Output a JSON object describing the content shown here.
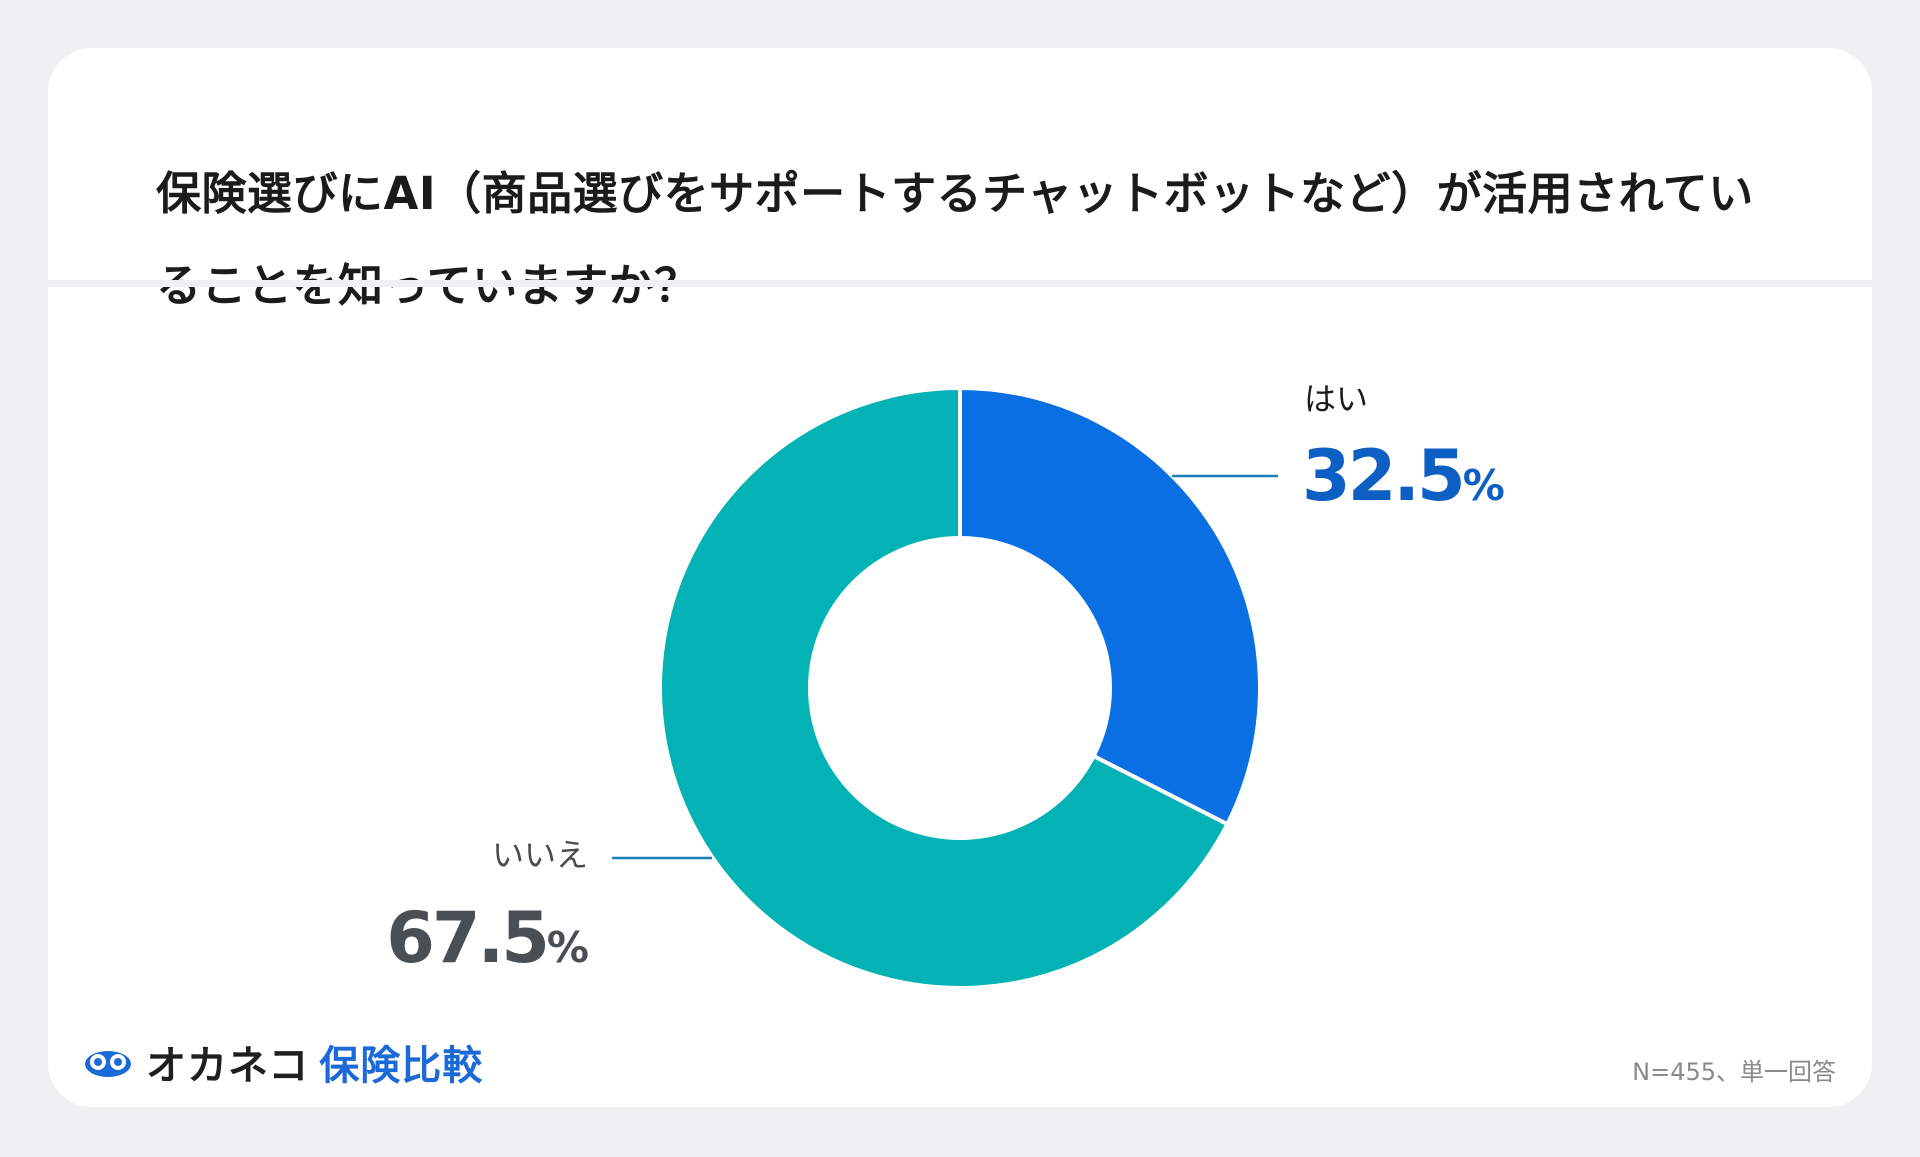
{
  "title": "保険選びにAI（商品選びをサポートするチャットボットなど）が活用されていることを知っていますか？",
  "chart_data": {
    "type": "pie",
    "donut": true,
    "slices": [
      {
        "label": "はい",
        "value": 32.5,
        "unit": "%",
        "color": "#0a6fe3",
        "label_color": "#1b1b1b",
        "value_color": "#0e5fc4"
      },
      {
        "label": "いいえ",
        "value": 67.5,
        "unit": "%",
        "color": "#03b2b4",
        "label_color": "#4a4a4a",
        "value_color": "#4a4f56"
      }
    ]
  },
  "brand": {
    "name": "オカネコ",
    "sub": "保険比較",
    "logo_icon": "okaneko-logo-icon",
    "color": "#1c6ad8"
  },
  "note": "N=455、単一回答"
}
